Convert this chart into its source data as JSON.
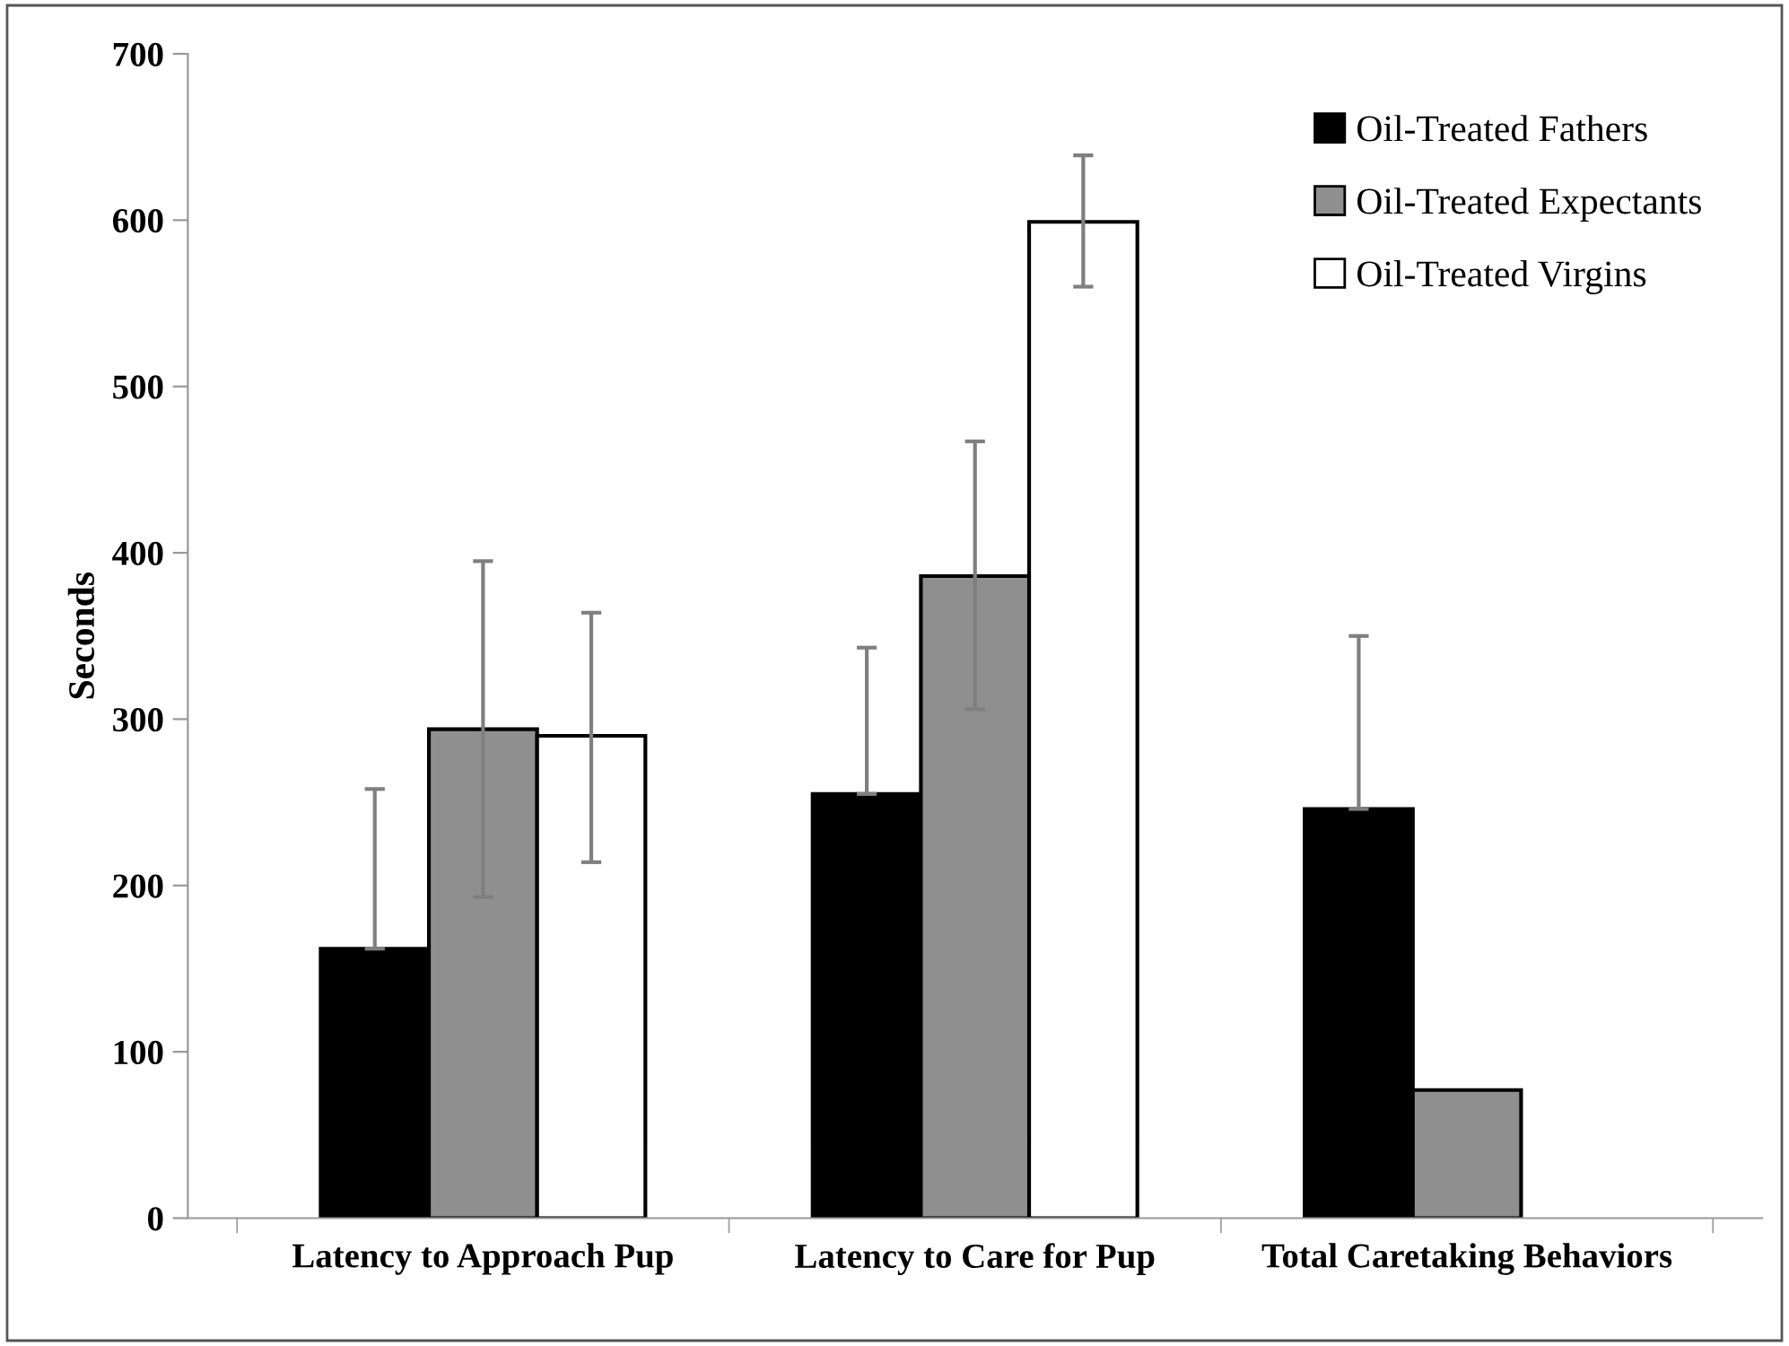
{
  "chart_data": {
    "type": "bar",
    "ylabel": "Seconds",
    "categories": [
      "Latency to Approach Pup",
      "Latency to Care for Pup",
      "Total Caretaking Behaviors"
    ],
    "series": [
      {
        "name": "Oil-Treated Fathers",
        "color": "#000000",
        "values": [
          162,
          255,
          246
        ],
        "errors": [
          [
            162,
            258
          ],
          [
            255,
            343
          ],
          [
            246,
            350
          ]
        ]
      },
      {
        "name": "Oil-Treated Expectants",
        "color": "#8f8f8f",
        "values": [
          294,
          386,
          77
        ],
        "errors": [
          [
            193,
            395
          ],
          [
            306,
            467
          ],
          null
        ]
      },
      {
        "name": "Oil-Treated Virgins",
        "color": "#ffffff",
        "values": [
          290,
          599,
          null
        ],
        "errors": [
          [
            214,
            364
          ],
          [
            560,
            639
          ],
          null
        ]
      }
    ],
    "ylim": [
      0,
      700
    ],
    "yticks": [
      0,
      100,
      200,
      300,
      400,
      500,
      600,
      700
    ],
    "grid": false,
    "legend": "top right"
  }
}
